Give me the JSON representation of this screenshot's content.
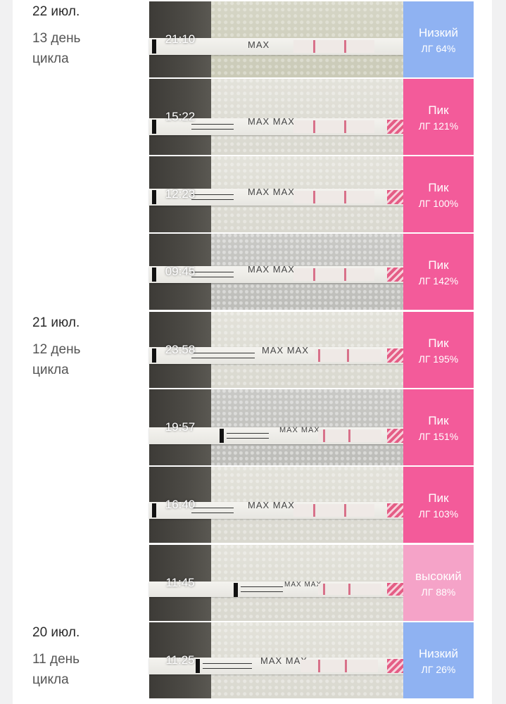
{
  "colors": {
    "low": "#8fb2f2",
    "peak": "#f35b9a",
    "high": "#f5a3c8"
  },
  "days": [
    {
      "date": "22 июл.",
      "cycle_day": "13 день цикла"
    },
    {
      "date": "21 июл.",
      "cycle_day": "12 день цикла"
    },
    {
      "date": "20 июл.",
      "cycle_day": "11 день цикла"
    }
  ],
  "tests": [
    {
      "time": "21:10",
      "level": "Низкий",
      "lh": "ЛГ 64%",
      "status": "low",
      "strip_label": "MAX"
    },
    {
      "time": "15:22",
      "level": "Пик",
      "lh": "ЛГ 121%",
      "status": "peak",
      "strip_label": "MAX MAX"
    },
    {
      "time": "12:23",
      "level": "Пик",
      "lh": "ЛГ 100%",
      "status": "peak",
      "strip_label": "MAX MAX"
    },
    {
      "time": "09:45",
      "level": "Пик",
      "lh": "ЛГ 142%",
      "status": "peak",
      "strip_label": "MAX MAX"
    },
    {
      "time": "23:58",
      "level": "Пик",
      "lh": "ЛГ 195%",
      "status": "peak",
      "strip_label": "MAX MAX"
    },
    {
      "time": "19:57",
      "level": "Пик",
      "lh": "ЛГ 151%",
      "status": "peak",
      "strip_label": "MAX MAX"
    },
    {
      "time": "16:40",
      "level": "Пик",
      "lh": "ЛГ 103%",
      "status": "peak",
      "strip_label": "MAX MAX"
    },
    {
      "time": "11:45",
      "level": "высокий",
      "lh": "ЛГ 88%",
      "status": "high",
      "strip_label": "MAX MAX"
    },
    {
      "time": "11:25",
      "level": "Низкий",
      "lh": "ЛГ 26%",
      "status": "low",
      "strip_label": "MAX MAX"
    }
  ]
}
